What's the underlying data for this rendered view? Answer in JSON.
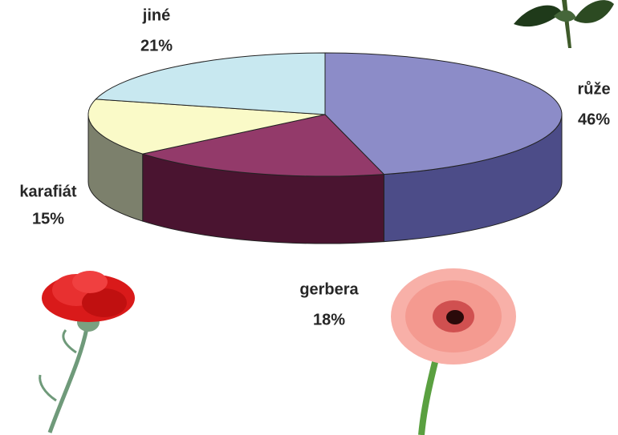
{
  "chart_data": {
    "type": "pie",
    "categories": [
      "růže",
      "gerbera",
      "karafiát",
      "jiné"
    ],
    "values": [
      46,
      18,
      15,
      21
    ],
    "value_labels": [
      "46%",
      "18%",
      "15%",
      "21%"
    ],
    "colors": [
      "#8c8cc8",
      "#933a6a",
      "#fafac8",
      "#c8e8f0"
    ],
    "side_colors": [
      "#4c4c88",
      "#4a1430",
      "#7c806c",
      "#8fb0b8"
    ]
  }
}
